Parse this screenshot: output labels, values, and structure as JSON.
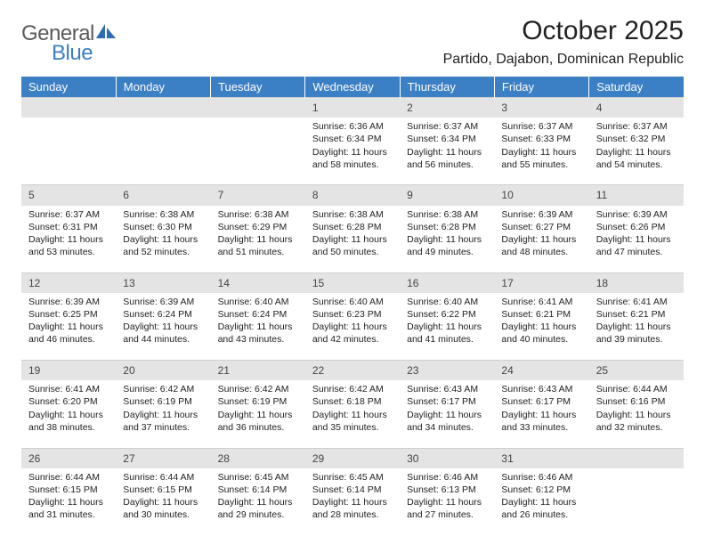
{
  "brand": {
    "general": "General",
    "blue": "Blue"
  },
  "header": {
    "title": "October 2025",
    "location": "Partido, Dajabon, Dominican Republic"
  },
  "style": {
    "header_bg": "#3b7fc4",
    "header_fg": "#ffffff",
    "daynum_bg": "#e4e4e4",
    "page_bg": "#ffffff",
    "text_color": "#222222"
  },
  "weekdays": [
    "Sunday",
    "Monday",
    "Tuesday",
    "Wednesday",
    "Thursday",
    "Friday",
    "Saturday"
  ],
  "weeks": [
    [
      null,
      null,
      null,
      {
        "n": "1",
        "sr": "6:36 AM",
        "ss": "6:34 PM",
        "dl": "11 hours and 58 minutes."
      },
      {
        "n": "2",
        "sr": "6:37 AM",
        "ss": "6:34 PM",
        "dl": "11 hours and 56 minutes."
      },
      {
        "n": "3",
        "sr": "6:37 AM",
        "ss": "6:33 PM",
        "dl": "11 hours and 55 minutes."
      },
      {
        "n": "4",
        "sr": "6:37 AM",
        "ss": "6:32 PM",
        "dl": "11 hours and 54 minutes."
      }
    ],
    [
      {
        "n": "5",
        "sr": "6:37 AM",
        "ss": "6:31 PM",
        "dl": "11 hours and 53 minutes."
      },
      {
        "n": "6",
        "sr": "6:38 AM",
        "ss": "6:30 PM",
        "dl": "11 hours and 52 minutes."
      },
      {
        "n": "7",
        "sr": "6:38 AM",
        "ss": "6:29 PM",
        "dl": "11 hours and 51 minutes."
      },
      {
        "n": "8",
        "sr": "6:38 AM",
        "ss": "6:28 PM",
        "dl": "11 hours and 50 minutes."
      },
      {
        "n": "9",
        "sr": "6:38 AM",
        "ss": "6:28 PM",
        "dl": "11 hours and 49 minutes."
      },
      {
        "n": "10",
        "sr": "6:39 AM",
        "ss": "6:27 PM",
        "dl": "11 hours and 48 minutes."
      },
      {
        "n": "11",
        "sr": "6:39 AM",
        "ss": "6:26 PM",
        "dl": "11 hours and 47 minutes."
      }
    ],
    [
      {
        "n": "12",
        "sr": "6:39 AM",
        "ss": "6:25 PM",
        "dl": "11 hours and 46 minutes."
      },
      {
        "n": "13",
        "sr": "6:39 AM",
        "ss": "6:24 PM",
        "dl": "11 hours and 44 minutes."
      },
      {
        "n": "14",
        "sr": "6:40 AM",
        "ss": "6:24 PM",
        "dl": "11 hours and 43 minutes."
      },
      {
        "n": "15",
        "sr": "6:40 AM",
        "ss": "6:23 PM",
        "dl": "11 hours and 42 minutes."
      },
      {
        "n": "16",
        "sr": "6:40 AM",
        "ss": "6:22 PM",
        "dl": "11 hours and 41 minutes."
      },
      {
        "n": "17",
        "sr": "6:41 AM",
        "ss": "6:21 PM",
        "dl": "11 hours and 40 minutes."
      },
      {
        "n": "18",
        "sr": "6:41 AM",
        "ss": "6:21 PM",
        "dl": "11 hours and 39 minutes."
      }
    ],
    [
      {
        "n": "19",
        "sr": "6:41 AM",
        "ss": "6:20 PM",
        "dl": "11 hours and 38 minutes."
      },
      {
        "n": "20",
        "sr": "6:42 AM",
        "ss": "6:19 PM",
        "dl": "11 hours and 37 minutes."
      },
      {
        "n": "21",
        "sr": "6:42 AM",
        "ss": "6:19 PM",
        "dl": "11 hours and 36 minutes."
      },
      {
        "n": "22",
        "sr": "6:42 AM",
        "ss": "6:18 PM",
        "dl": "11 hours and 35 minutes."
      },
      {
        "n": "23",
        "sr": "6:43 AM",
        "ss": "6:17 PM",
        "dl": "11 hours and 34 minutes."
      },
      {
        "n": "24",
        "sr": "6:43 AM",
        "ss": "6:17 PM",
        "dl": "11 hours and 33 minutes."
      },
      {
        "n": "25",
        "sr": "6:44 AM",
        "ss": "6:16 PM",
        "dl": "11 hours and 32 minutes."
      }
    ],
    [
      {
        "n": "26",
        "sr": "6:44 AM",
        "ss": "6:15 PM",
        "dl": "11 hours and 31 minutes."
      },
      {
        "n": "27",
        "sr": "6:44 AM",
        "ss": "6:15 PM",
        "dl": "11 hours and 30 minutes."
      },
      {
        "n": "28",
        "sr": "6:45 AM",
        "ss": "6:14 PM",
        "dl": "11 hours and 29 minutes."
      },
      {
        "n": "29",
        "sr": "6:45 AM",
        "ss": "6:14 PM",
        "dl": "11 hours and 28 minutes."
      },
      {
        "n": "30",
        "sr": "6:46 AM",
        "ss": "6:13 PM",
        "dl": "11 hours and 27 minutes."
      },
      {
        "n": "31",
        "sr": "6:46 AM",
        "ss": "6:12 PM",
        "dl": "11 hours and 26 minutes."
      },
      null
    ]
  ],
  "labels": {
    "sunrise": "Sunrise: ",
    "sunset": "Sunset: ",
    "daylight": "Daylight: "
  }
}
